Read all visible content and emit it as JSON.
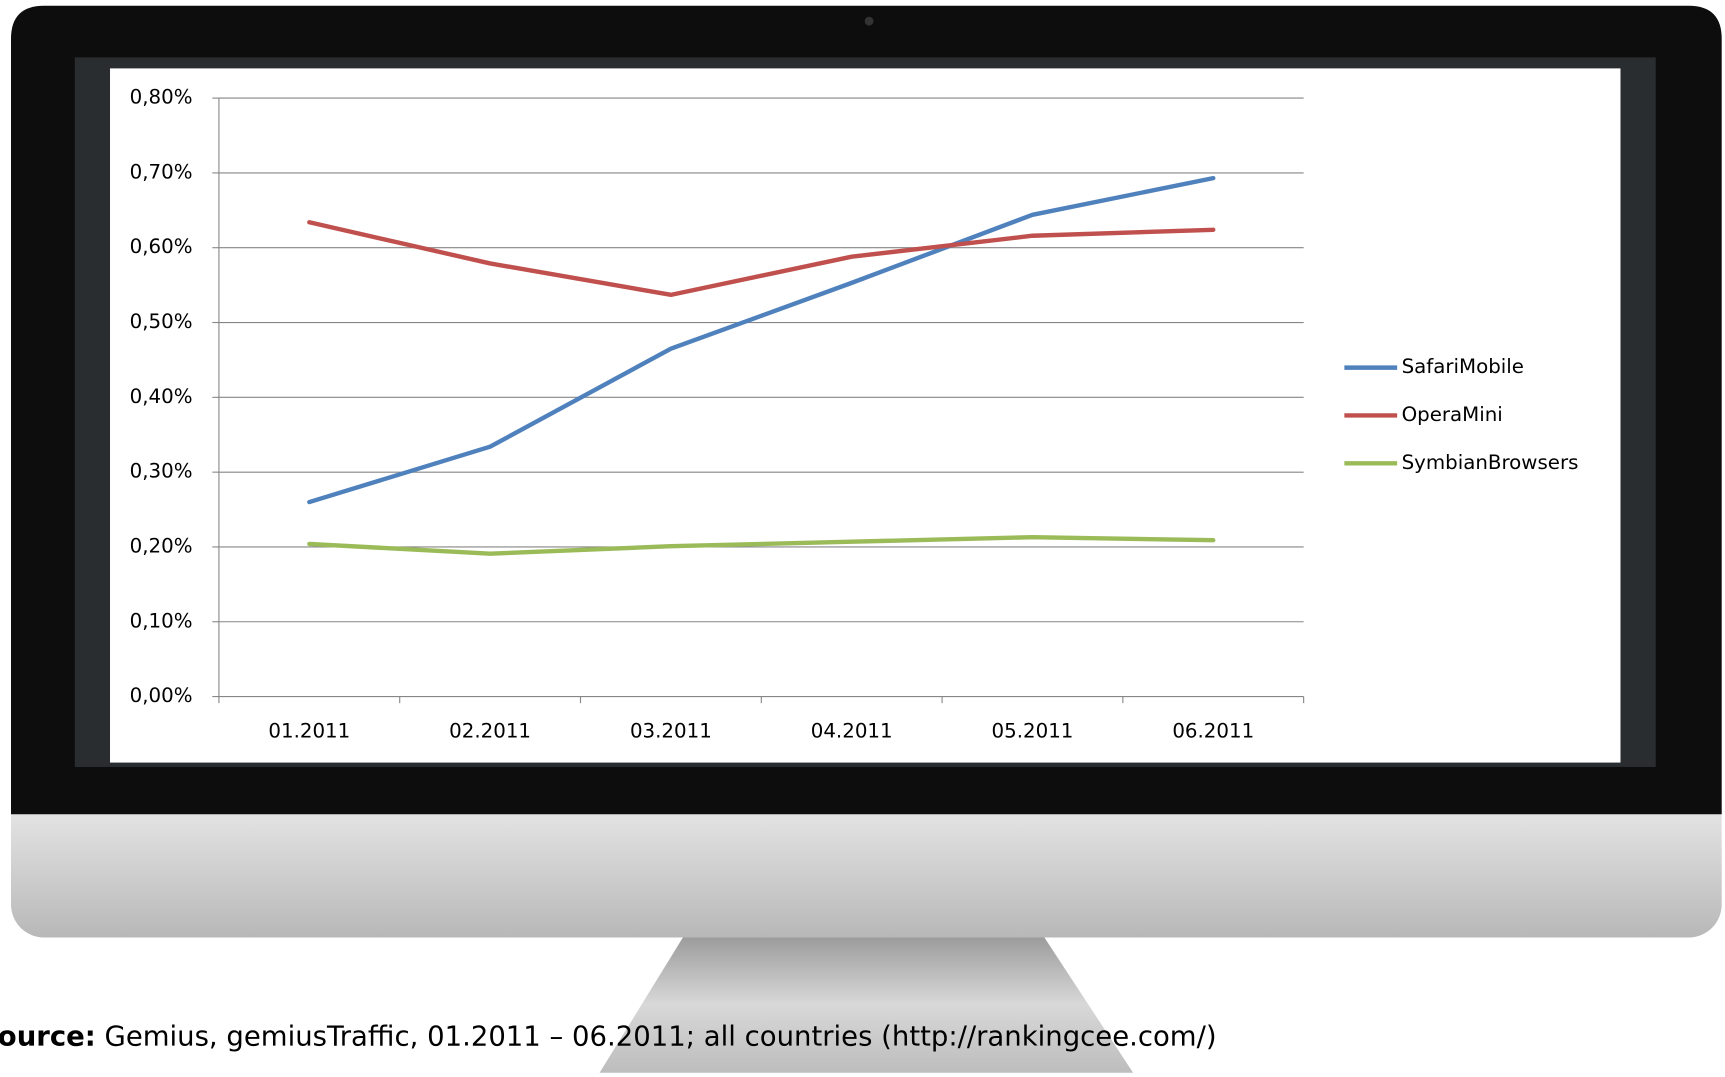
{
  "chart_data": {
    "type": "line",
    "categories": [
      "01.2011",
      "02.2011",
      "03.2011",
      "04.2011",
      "05.2011",
      "06.2011"
    ],
    "series": [
      {
        "name": "SafariMobile",
        "color": "#4f81bd",
        "values": [
          0.26,
          0.334,
          0.465,
          0.553,
          0.644,
          0.693
        ]
      },
      {
        "name": "OperaMini",
        "color": "#c0504d",
        "values": [
          0.634,
          0.579,
          0.537,
          0.588,
          0.616,
          0.624
        ]
      },
      {
        "name": "SymbianBrowsers",
        "color": "#9bbb59",
        "values": [
          0.204,
          0.191,
          0.201,
          0.207,
          0.213,
          0.209
        ]
      }
    ],
    "ylim": [
      0,
      0.8
    ],
    "yticks": [
      {
        "value": 0,
        "label": "0,00%"
      },
      {
        "value": 0.1,
        "label": "0,10%"
      },
      {
        "value": 0.2,
        "label": "0,20%"
      },
      {
        "value": 0.3,
        "label": "0,30%"
      },
      {
        "value": 0.4,
        "label": "0,40%"
      },
      {
        "value": 0.5,
        "label": "0,50%"
      },
      {
        "value": 0.6,
        "label": "0,60%"
      },
      {
        "value": 0.7,
        "label": "0,70%"
      },
      {
        "value": 0.8,
        "label": "0,80%"
      }
    ],
    "grid": true,
    "legend": "right"
  },
  "source_label": "Source:",
  "source_text": " Gemius, gemiusTraffic, 01.2011 – 06.2011; all countries (http://rankingcee.com/)"
}
